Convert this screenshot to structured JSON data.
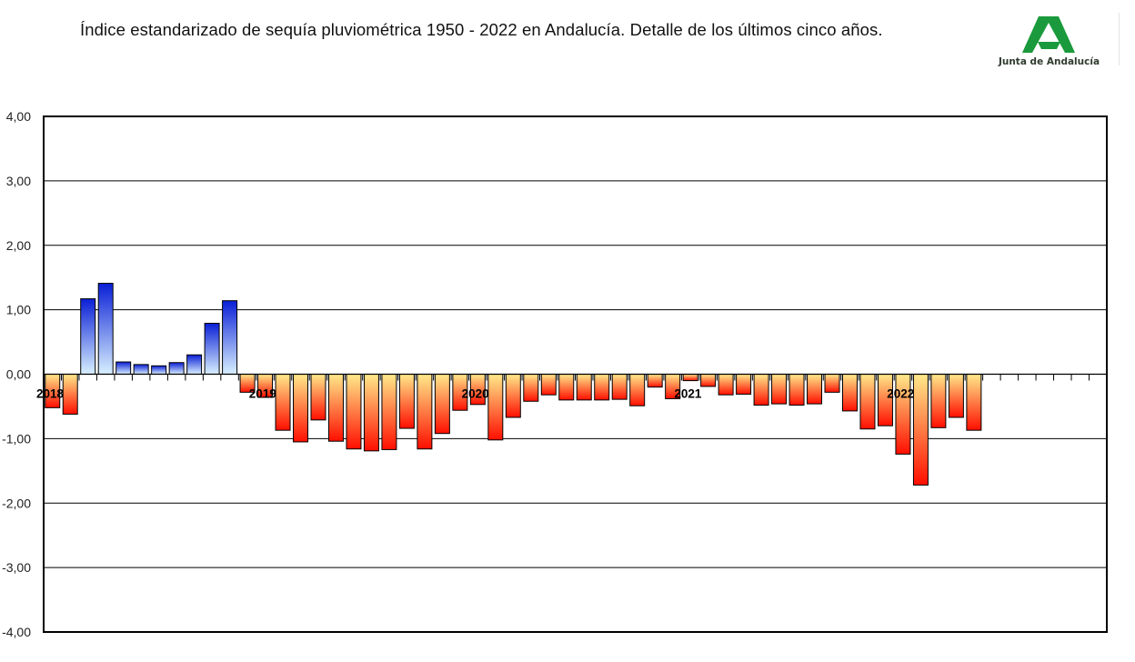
{
  "header": {
    "title": "Índice estandarizado de sequía pluviométrica 1950 - 2022 en Andalucía. Detalle de los últimos cinco años.",
    "logo_text": "Junta de Andalucía",
    "logo_icon": "junta-andalucia-logo-icon",
    "logo_color": "#1a9a3c"
  },
  "chart_data": {
    "type": "bar",
    "title": "Índice estandarizado de sequía pluviométrica 1950 - 2022 en Andalucía. Detalle de los últimos cinco años.",
    "xlabel": "",
    "ylabel": "",
    "ylim": [
      -4,
      4
    ],
    "y_ticks": [
      "-4,00",
      "-3,00",
      "-2,00",
      "-1,00",
      "0,00",
      "1,00",
      "2,00",
      "3,00",
      "4,00"
    ],
    "grid": true,
    "n_slots": 60,
    "year_labels": [
      {
        "label": "2018",
        "index": 0
      },
      {
        "label": "2019",
        "index": 12
      },
      {
        "label": "2020",
        "index": 24
      },
      {
        "label": "2021",
        "index": 36
      },
      {
        "label": "2022",
        "index": 48
      }
    ],
    "values": [
      -0.52,
      -0.62,
      1.17,
      1.41,
      0.19,
      0.15,
      0.13,
      0.18,
      0.3,
      0.79,
      1.14,
      -0.28,
      -0.36,
      -0.87,
      -1.05,
      -0.71,
      -1.04,
      -1.16,
      -1.19,
      -1.17,
      -0.84,
      -1.16,
      -0.92,
      -0.56,
      -0.47,
      -1.02,
      -0.67,
      -0.42,
      -0.32,
      -0.4,
      -0.4,
      -0.4,
      -0.39,
      -0.49,
      -0.2,
      -0.38,
      -0.1,
      -0.19,
      -0.32,
      -0.31,
      -0.48,
      -0.46,
      -0.48,
      -0.46,
      -0.28,
      -0.57,
      -0.85,
      -0.8,
      -1.24,
      -1.72,
      -0.83,
      -0.67,
      -0.87
    ],
    "colors": {
      "positive_top": "#0a1fd6",
      "positive_bottom": "#d8f0ff",
      "negative_top": "#ffe98a",
      "negative_bottom": "#ff0e00",
      "grid": "#000000",
      "axis": "#000000"
    }
  }
}
